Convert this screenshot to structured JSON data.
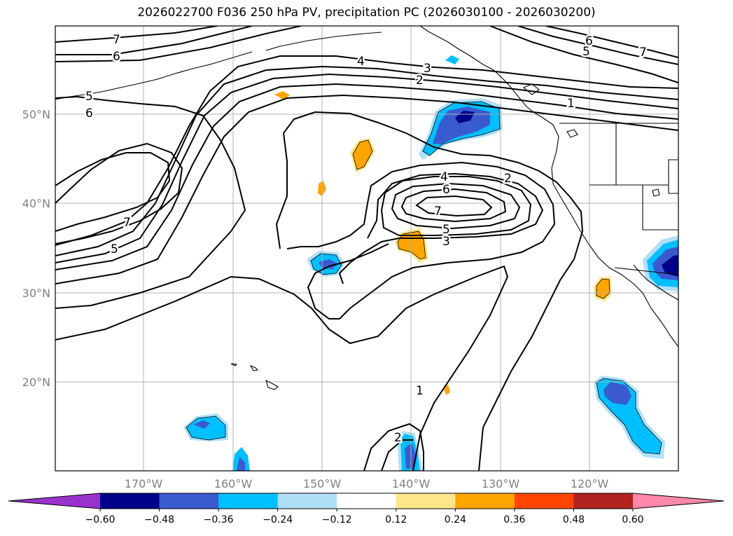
{
  "title": "2026022700 F036 250 hPa PV, precipitation PC (2026030100 - 2026030200)",
  "map": {
    "projection": "PlateCarree",
    "lon_range": [
      -180,
      -110
    ],
    "lat_range": [
      10,
      60
    ],
    "gridlines": true
  },
  "lat_labels": [
    "50°N",
    "40°N",
    "30°N",
    "20°N"
  ],
  "lon_labels": [
    "170°W",
    "160°W",
    "150°W",
    "140°W",
    "130°W",
    "120°W"
  ],
  "contour_labels": [
    "7",
    "6",
    "5",
    "6",
    "4",
    "3",
    "2",
    "7",
    "5",
    "4",
    "2",
    "6",
    "7",
    "5",
    "3",
    "1",
    "2",
    "6",
    "5",
    "7",
    "1"
  ],
  "colorbar": {
    "ticks": [
      "−0.60",
      "−0.48",
      "−0.36",
      "−0.24",
      "−0.12",
      "0.12",
      "0.24",
      "0.36",
      "0.48",
      "0.60"
    ],
    "colors": [
      "#9932cc",
      "#00008b",
      "#3a5bd0",
      "#00bfff",
      "#b0e0f8",
      "#ffffff",
      "#fde68a",
      "#ffa500",
      "#ff4500",
      "#b22222",
      "#ff88aa"
    ]
  }
}
